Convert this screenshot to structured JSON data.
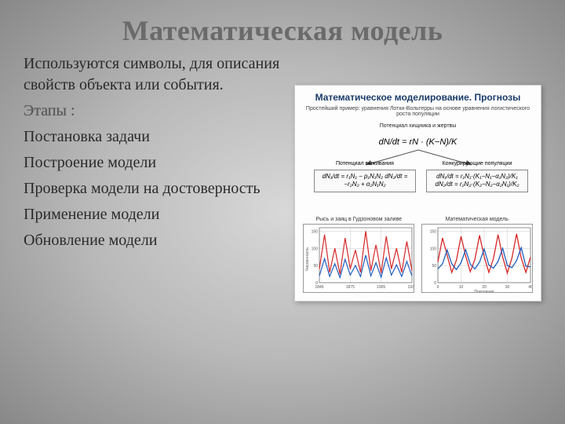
{
  "title": "Математическая модель",
  "intro": "Используются символы, для описания свойств объекта или события.",
  "etapy_label": "Этапы :",
  "steps": [
    "Постановка задачи",
    "Построение модели",
    "Проверка модели на достоверность",
    "Применение модели",
    "Обновление модели"
  ],
  "panel": {
    "title": "Математическое моделирование. Прогнозы",
    "subtitle": "Простейший пример: уравнения Лотки-Вольтерры на основе уравнения логистического роста популяции",
    "top_label": "Потенциал хищника и жертвы",
    "top_eq": "dN/dt = rN · (K−N)/K",
    "branch_left_label": "Потенциал выживания",
    "branch_right_label": "Конкурирующие популяции",
    "eq_left": "dN₁/dt = r₁N₁ − p₁N₁N₂\ndN₂/dt = −r₂N₂ + α₂N₁N₂",
    "eq_right": "dN₁/dt = r₁N₁·(K₁−N₁−α₁N₂)/K₁\ndN₂/dt = r₂N₂·(K₂−N₂−α₂N₁)/K₂",
    "chart1": {
      "type": "line",
      "caption": "Рысь и заяц в Гудзоновом заливе",
      "xlim": [
        1845,
        1935
      ],
      "ylim": [
        0,
        160
      ],
      "xticks": [
        1845,
        1875,
        1905,
        1935
      ],
      "yticks": [
        0,
        50,
        100,
        150
      ],
      "xlabel": "",
      "ylabel": "Численность",
      "background_color": "#ffffff",
      "grid_color": "#c8c8c8",
      "series": [
        {
          "color": "#d62728",
          "width": 1.2,
          "x": [
            1845,
            1850,
            1855,
            1860,
            1865,
            1870,
            1875,
            1880,
            1885,
            1890,
            1895,
            1900,
            1905,
            1910,
            1915,
            1920,
            1925,
            1930,
            1935
          ],
          "y": [
            40,
            140,
            30,
            100,
            25,
            130,
            40,
            95,
            30,
            150,
            35,
            110,
            28,
            135,
            40,
            100,
            30,
            120,
            35
          ]
        },
        {
          "color": "#1f5fbf",
          "width": 1.2,
          "x": [
            1845,
            1850,
            1855,
            1860,
            1865,
            1870,
            1875,
            1880,
            1885,
            1890,
            1895,
            1900,
            1905,
            1910,
            1915,
            1920,
            1925,
            1930,
            1935
          ],
          "y": [
            20,
            70,
            18,
            55,
            15,
            68,
            22,
            50,
            18,
            80,
            20,
            58,
            16,
            72,
            22,
            52,
            18,
            62,
            20
          ]
        }
      ]
    },
    "chart2": {
      "type": "line",
      "caption": "Математическая модель",
      "xlim": [
        0,
        40
      ],
      "ylim": [
        0,
        160
      ],
      "xticks": [
        0,
        10,
        20,
        30,
        40
      ],
      "yticks": [
        0,
        50,
        100,
        150
      ],
      "xlabel": "Поколения",
      "ylabel": "",
      "background_color": "#ffffff",
      "grid_color": "#c8c8c8",
      "series": [
        {
          "color": "#d62728",
          "width": 1.3,
          "x": [
            0,
            2,
            4,
            6,
            8,
            10,
            12,
            14,
            16,
            18,
            20,
            22,
            24,
            26,
            28,
            30,
            32,
            34,
            36,
            38,
            40
          ],
          "y": [
            60,
            130,
            80,
            30,
            65,
            135,
            78,
            32,
            68,
            138,
            76,
            30,
            70,
            140,
            74,
            28,
            72,
            142,
            72,
            30,
            74
          ]
        },
        {
          "color": "#1f5fbf",
          "width": 1.3,
          "x": [
            0,
            2,
            4,
            6,
            8,
            10,
            12,
            14,
            16,
            18,
            20,
            22,
            24,
            26,
            28,
            30,
            32,
            34,
            36,
            38,
            40
          ],
          "y": [
            40,
            55,
            95,
            55,
            38,
            58,
            96,
            54,
            40,
            60,
            98,
            52,
            42,
            62,
            100,
            50,
            44,
            64,
            102,
            48,
            46
          ]
        }
      ]
    }
  }
}
